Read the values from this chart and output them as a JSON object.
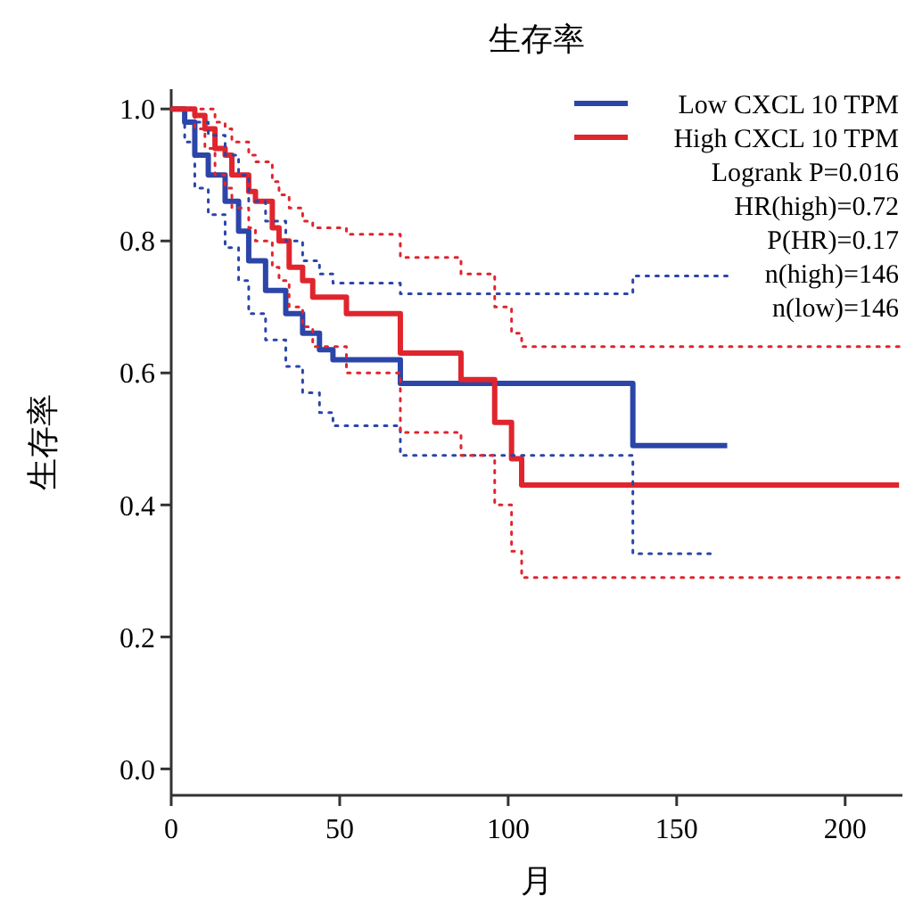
{
  "chart_data": {
    "type": "step",
    "title": "生存率",
    "xlabel": "月",
    "ylabel": "生存率",
    "xlim": [
      0,
      217
    ],
    "ylim": [
      -0.04,
      1.03
    ],
    "xticks": [
      0,
      50,
      100,
      150,
      200
    ],
    "yticks": [
      {
        "value": 0,
        "label": "0.0"
      },
      {
        "value": 0.2,
        "label": "0.2"
      },
      {
        "value": 0.4,
        "label": "0.4"
      },
      {
        "value": 0.6,
        "label": "0.6"
      },
      {
        "value": 0.8,
        "label": "0.8"
      },
      {
        "value": 1,
        "label": "1.0"
      }
    ],
    "grid": false,
    "legend": "top right",
    "marker": "none",
    "line_style": "solid",
    "series": [
      {
        "name": "Low CXCL 10 TPM",
        "color": "#2b45a8",
        "x": [
          0,
          4,
          7,
          11,
          16,
          20,
          23,
          28,
          34,
          39,
          44,
          48,
          68,
          137,
          165
        ],
        "values": [
          1.0,
          0.98,
          0.93,
          0.9,
          0.86,
          0.815,
          0.77,
          0.725,
          0.69,
          0.66,
          0.635,
          0.62,
          0.584,
          0.49,
          0.49
        ]
      },
      {
        "name": "High CXCL 10 TPM",
        "color": "#e0252d",
        "x": [
          0,
          7,
          10,
          13,
          16,
          18,
          23,
          25,
          30,
          32,
          35,
          39,
          42,
          52,
          68,
          86,
          96,
          101,
          104,
          216
        ],
        "values": [
          1.0,
          0.99,
          0.97,
          0.94,
          0.93,
          0.9,
          0.875,
          0.86,
          0.82,
          0.8,
          0.76,
          0.74,
          0.715,
          0.69,
          0.63,
          0.59,
          0.525,
          0.47,
          0.43,
          0.43
        ]
      },
      {
        "color": "#2b45a8",
        "line_style": "dotted",
        "x": [
          0,
          4,
          7,
          11,
          16,
          20,
          23,
          28,
          34,
          39,
          44,
          48,
          68,
          137,
          165
        ],
        "values": [
          1.0,
          1.0,
          0.98,
          0.96,
          0.93,
          0.9,
          0.86,
          0.83,
          0.8,
          0.77,
          0.75,
          0.736,
          0.72,
          0.747,
          0.747
        ]
      },
      {
        "color": "#2b45a8",
        "line_style": "dotted",
        "x": [
          0,
          4,
          7,
          11,
          16,
          20,
          23,
          28,
          34,
          39,
          44,
          48,
          68,
          137,
          160
        ],
        "values": [
          1.0,
          0.95,
          0.88,
          0.84,
          0.79,
          0.74,
          0.69,
          0.65,
          0.61,
          0.57,
          0.54,
          0.52,
          0.475,
          0.326,
          0.326
        ]
      },
      {
        "color": "#e0252d",
        "line_style": "dotted",
        "x": [
          0,
          7,
          10,
          13,
          16,
          18,
          23,
          25,
          30,
          32,
          35,
          39,
          42,
          52,
          68,
          86,
          96,
          101,
          104,
          216
        ],
        "values": [
          1.0,
          1.0,
          1.0,
          0.98,
          0.97,
          0.95,
          0.93,
          0.92,
          0.89,
          0.87,
          0.85,
          0.83,
          0.82,
          0.81,
          0.775,
          0.75,
          0.7,
          0.66,
          0.64,
          0.64
        ]
      },
      {
        "color": "#e0252d",
        "line_style": "dotted",
        "x": [
          0,
          7,
          10,
          13,
          16,
          18,
          23,
          25,
          30,
          32,
          35,
          39,
          42,
          52,
          68,
          86,
          96,
          101,
          104,
          216
        ],
        "values": [
          1.0,
          0.97,
          0.94,
          0.9,
          0.88,
          0.85,
          0.82,
          0.8,
          0.76,
          0.74,
          0.7,
          0.67,
          0.64,
          0.6,
          0.51,
          0.475,
          0.4,
          0.33,
          0.29,
          0.29
        ]
      }
    ],
    "annotations": [
      "Logrank P=0.016",
      "HR(high)=0.72",
      "P(HR)=0.17",
      "n(high)=146",
      "n(low)=146"
    ]
  }
}
